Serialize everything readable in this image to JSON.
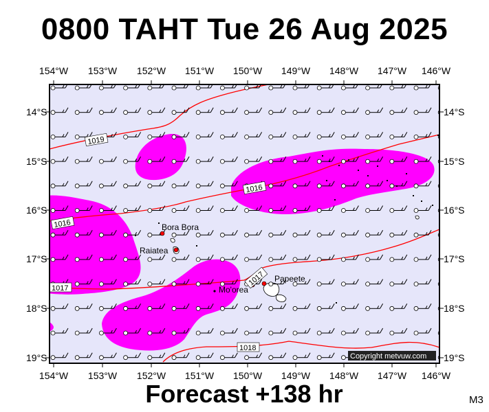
{
  "title": "0800 TAHT Tue 26 Aug 2025",
  "footer": "Forecast +138 hr",
  "corner_label": "M3",
  "copyright": "Copyright metvuw.com",
  "axes": {
    "longitude_labels": [
      "154°W",
      "153°W",
      "152°W",
      "151°W",
      "150°W",
      "149°W",
      "148°W",
      "147°W",
      "146°W"
    ],
    "latitude_labels": [
      "14°S",
      "15°S",
      "16°S",
      "17°S",
      "18°S",
      "19°S"
    ]
  },
  "places": [
    {
      "name": "Bora Bora"
    },
    {
      "name": "Raiatea"
    },
    {
      "name": "Papeete"
    },
    {
      "name": "Mo'orea"
    }
  ],
  "isobar_labels": [
    "1019",
    "1016",
    "1016",
    "1017",
    "1017",
    "1018"
  ],
  "colors": {
    "ocean": "#e6e6fa",
    "precip": "#ff00ff",
    "isobar": "#ff0000",
    "wind": "#000000"
  }
}
